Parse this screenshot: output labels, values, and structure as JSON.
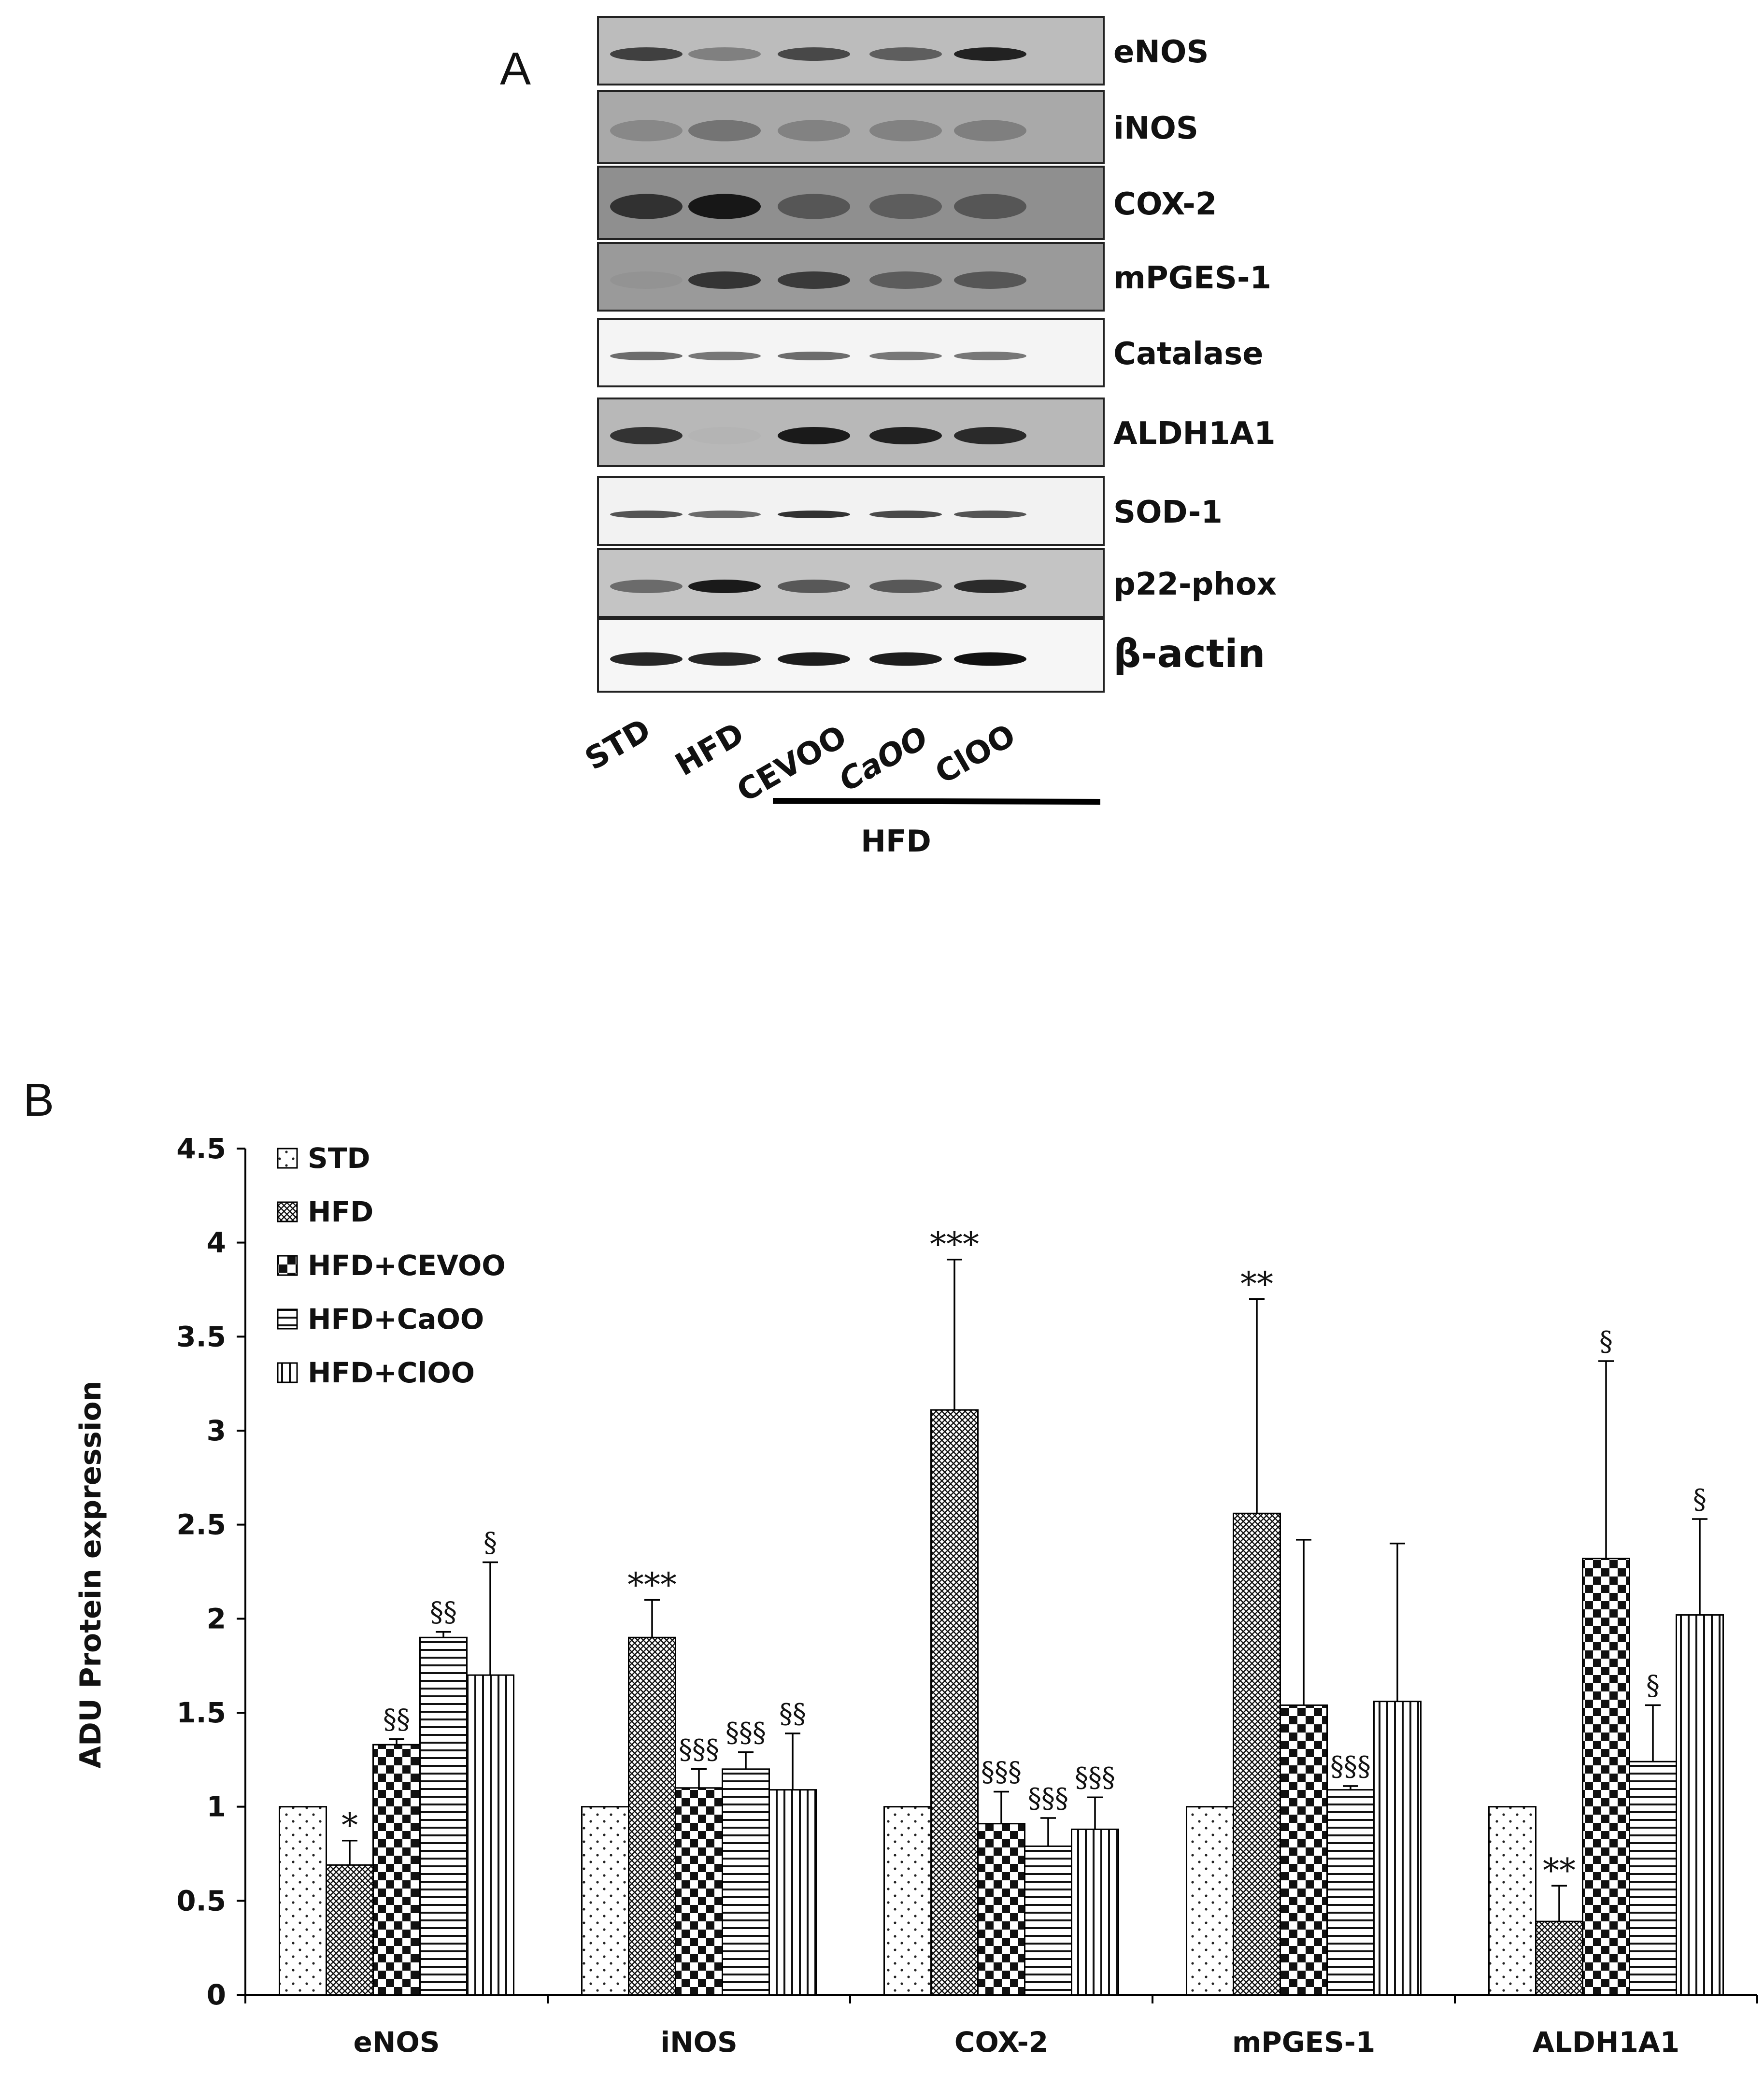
{
  "panel_a": {
    "letter": "A",
    "proteins": [
      "eNOS",
      "iNOS",
      "COX-2",
      "mPGES-1",
      "Catalase",
      "ALDH1A1",
      "SOD-1",
      "p22-phox",
      "β-actin"
    ],
    "lanes": [
      "STD",
      "HFD",
      "CEVOO",
      "CaOO",
      "ClOO"
    ],
    "group_label": "HFD"
  },
  "panel_b": {
    "letter": "B"
  },
  "chart_data": {
    "type": "bar",
    "title": "",
    "xlabel": "",
    "ylabel": "ADU Protein expression",
    "ylim": [
      0,
      4.5
    ],
    "yticks": [
      "0",
      "0.5",
      "1",
      "1.5",
      "2",
      "2.5",
      "3",
      "3.5",
      "4",
      "4.5"
    ],
    "categories": [
      "eNOS",
      "iNOS",
      "COX-2",
      "mPGES-1",
      "ALDH1A1"
    ],
    "legend_position": "top-left",
    "series": [
      {
        "name": "STD",
        "pattern": "dots",
        "values": [
          1,
          1,
          1,
          1,
          1
        ],
        "errors": [
          null,
          null,
          null,
          null,
          null
        ],
        "annotations": [
          "",
          "",
          "",
          "",
          ""
        ]
      },
      {
        "name": "HFD",
        "pattern": "crosshatch",
        "values": [
          0.69,
          1.9,
          3.11,
          2.56,
          0.39
        ],
        "errors": [
          0.13,
          0.2,
          0.8,
          1.14,
          0.19
        ],
        "annotations": [
          "*",
          "***",
          "***",
          "**",
          "**"
        ]
      },
      {
        "name": "HFD+CEVOO",
        "pattern": "checker",
        "values": [
          1.33,
          1.1,
          0.91,
          1.54,
          2.32
        ],
        "errors": [
          0.03,
          0.1,
          0.17,
          0.88,
          1.05
        ],
        "annotations": [
          "§§",
          "§§§",
          "§§§",
          "",
          "§"
        ]
      },
      {
        "name": "HFD+CaOO",
        "pattern": "hlines",
        "values": [
          1.9,
          1.2,
          0.79,
          1.09,
          1.24
        ],
        "errors": [
          0.03,
          0.09,
          0.15,
          0.02,
          0.3
        ],
        "annotations": [
          "§§",
          "§§§",
          "§§§",
          "§§§",
          "§"
        ]
      },
      {
        "name": "HFD+ClOO",
        "pattern": "vlines",
        "values": [
          1.7,
          1.09,
          0.88,
          1.56,
          2.02
        ],
        "errors": [
          0.6,
          0.3,
          0.17,
          0.84,
          0.51
        ],
        "annotations": [
          "§",
          "§§",
          "§§§",
          "",
          "§"
        ]
      }
    ]
  }
}
